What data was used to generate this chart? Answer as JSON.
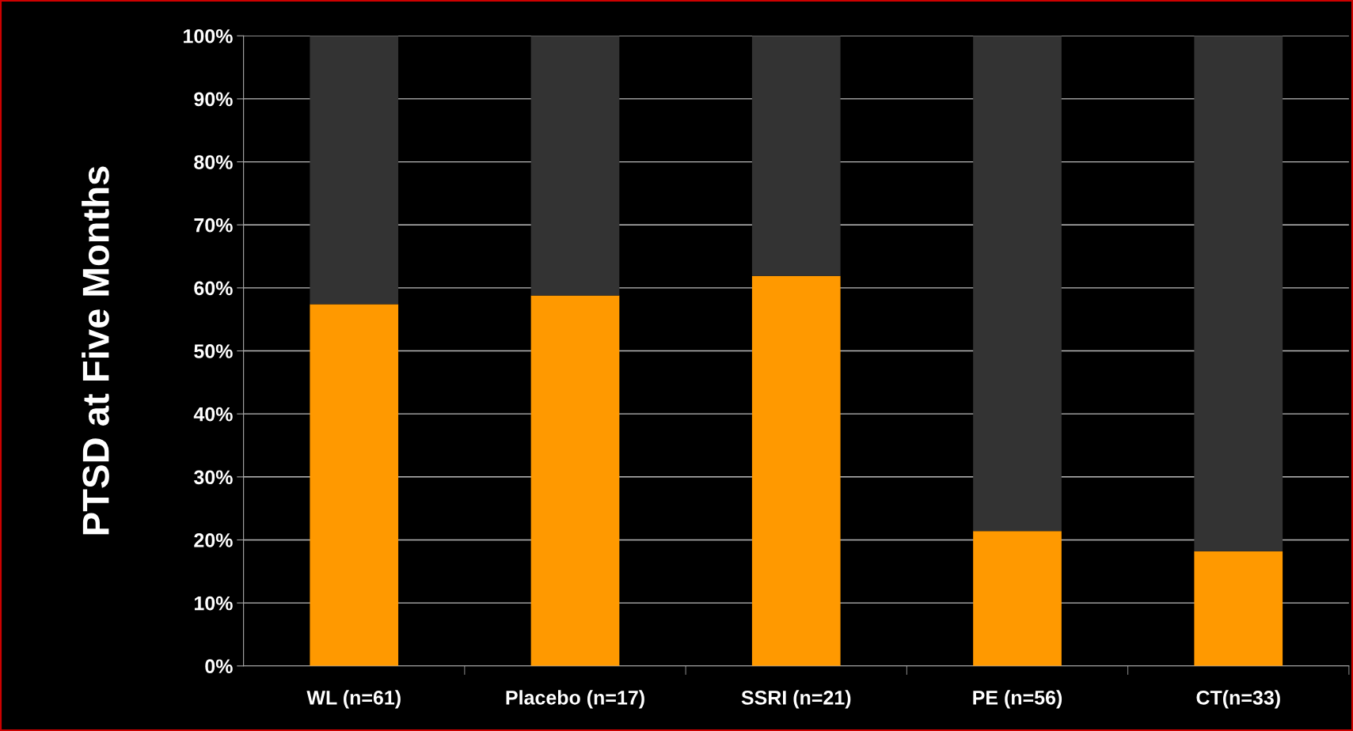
{
  "chart_data": {
    "type": "bar",
    "stacked": true,
    "ylabel": "PTSD at Five Months",
    "categories": [
      "WL (n=61)",
      "Placebo (n=17)",
      "SSRI (n=21)",
      "PE (n=56)",
      "CT(n=33)"
    ],
    "series": [
      {
        "color": "#ff9900",
        "values": [
          57.4,
          58.8,
          61.9,
          21.4,
          18.2
        ]
      },
      {
        "color": "#333333",
        "values": [
          42.6,
          41.2,
          38.1,
          78.6,
          81.8
        ]
      }
    ],
    "ylim": [
      0,
      100
    ],
    "yticks": [
      {
        "value": 0,
        "label": "0%"
      },
      {
        "value": 10,
        "label": "10%"
      },
      {
        "value": 20,
        "label": "20%"
      },
      {
        "value": 30,
        "label": "30%"
      },
      {
        "value": 40,
        "label": "40%"
      },
      {
        "value": 50,
        "label": "50%"
      },
      {
        "value": 60,
        "label": "60%"
      },
      {
        "value": 70,
        "label": "70%"
      },
      {
        "value": 80,
        "label": "80%"
      },
      {
        "value": 90,
        "label": "90%"
      },
      {
        "value": 100,
        "label": "100%"
      }
    ],
    "grid": "y"
  }
}
